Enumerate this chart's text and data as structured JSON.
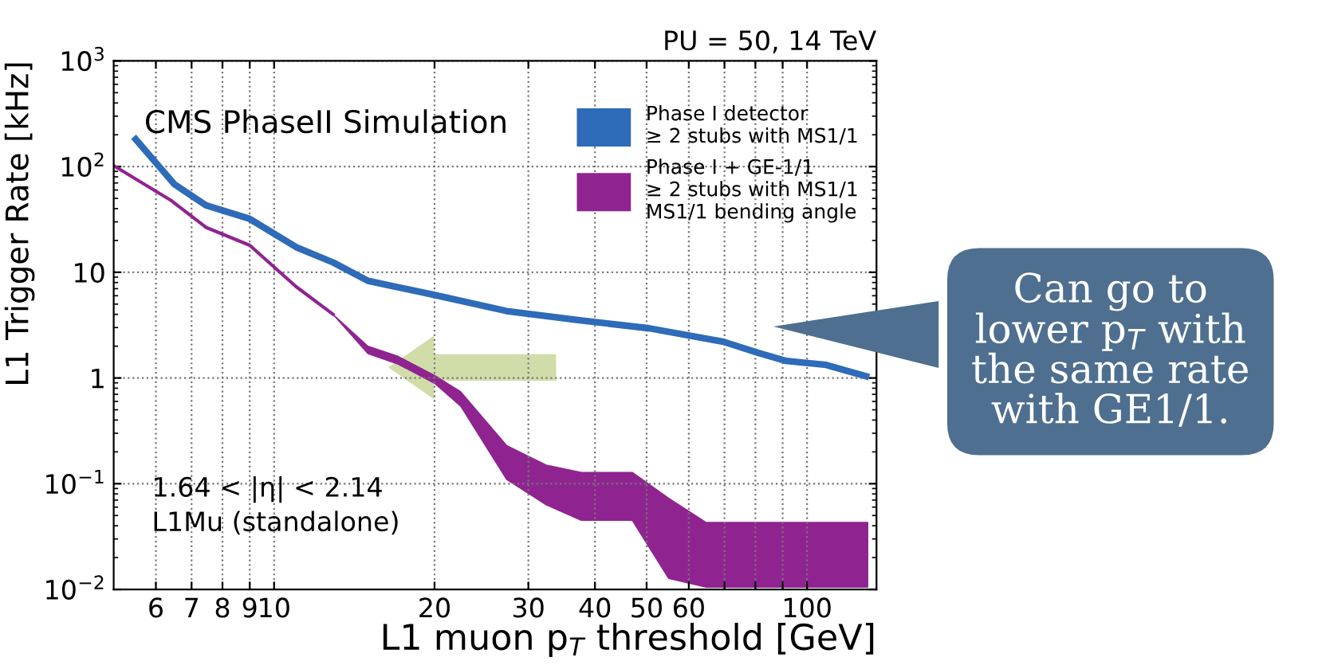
{
  "chart_data": {
    "type": "line",
    "xlabel": "L1 muon p$_{T}$ threshold [GeV]",
    "ylabel": "L1 Trigger Rate [kHz]",
    "log": "xy",
    "grid": true,
    "legend": "top right",
    "line_style": "solid",
    "marker": "none",
    "xlim": [
      5,
      135
    ],
    "ylim": [
      0.01,
      1000
    ],
    "xticks": [
      6,
      7,
      8,
      9,
      10,
      20,
      30,
      40,
      50,
      60,
      {
        "value": 70,
        "label": null
      },
      {
        "value": 80,
        "label": null
      },
      {
        "value": 90,
        "label": null
      },
      100
    ],
    "yticks": [
      {
        "value": 0.01,
        "label": "10$^{−2}$"
      },
      {
        "value": 0.1,
        "label": "10$^{−1}$"
      },
      1,
      10,
      {
        "value": 100,
        "label": "10$^{2}$"
      },
      {
        "value": 1000,
        "label": "10$^{3}$"
      }
    ],
    "series": [
      {
        "name": "Phase I detector\n≥ 2 stubs with MS1/1",
        "color": "#2e6bb8",
        "x": [
          5.5,
          6.5,
          7.45,
          9,
          11,
          12.9,
          15,
          20,
          27.3,
          37.7,
          50.6,
          69.7,
          80.7,
          91.4,
          108.6,
          129
        ],
        "values": [
          181,
          68,
          43,
          32,
          17.3,
          12.4,
          8.3,
          6.1,
          4.3,
          3.5,
          2.95,
          2.2,
          1.74,
          1.45,
          1.33,
          1.04
        ]
      },
      {
        "name": "Phase I + GE-1/1\n≥ 2 stubs with MS1/1\nMS1/1 bending angle",
        "color": "#8f2490",
        "x": [
          5,
          6.4,
          7.45,
          9,
          11,
          12.9,
          15,
          17.1,
          20,
          22.4,
          27.3,
          32.4,
          37.7,
          47,
          55,
          64.7,
          130
        ],
        "values": [
          102,
          48,
          26.6,
          18,
          7.3,
          4.0,
          null,
          null,
          null,
          null,
          null,
          null,
          null,
          null,
          null,
          null,
          null
        ],
        "lower": [
          null,
          null,
          null,
          null,
          null,
          4.0,
          1.7,
          1.35,
          0.89,
          0.54,
          0.11,
          0.063,
          0.045,
          0.045,
          0.0127,
          0.0105,
          0.0105
        ],
        "upper": [
          null,
          null,
          null,
          null,
          null,
          4.0,
          2.0,
          1.6,
          1.06,
          0.74,
          0.23,
          0.15,
          0.128,
          0.128,
          0.073,
          0.043,
          0.043
        ]
      }
    ],
    "annotations": [
      "CMS PhaseII Simulation",
      "PU = 50, 14 TeV",
      "1.64 < |η| < 2.14\nL1Mu (standalone)",
      "Can go to\nlower p$_{T}$ with\nthe same rate\nwith GE1/1."
    ]
  }
}
